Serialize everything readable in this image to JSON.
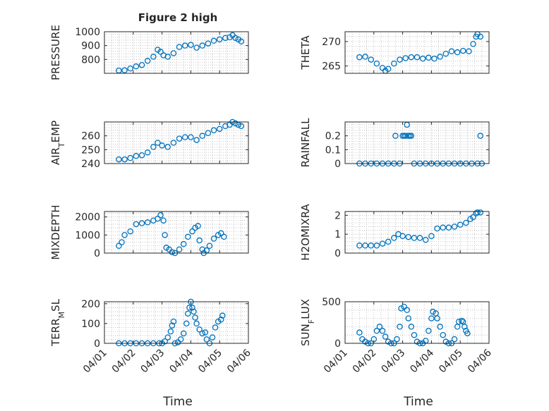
{
  "figure": {
    "title": "Figure 2 high",
    "xlabel": "Time",
    "x_tick_labels": [
      "04/01",
      "04/02",
      "04/03",
      "04/04",
      "04/05",
      "04/06"
    ],
    "marker_color": "#0072bd",
    "marker": "circle-open"
  },
  "chart_data": [
    {
      "type": "scatter",
      "name_key": "pressure",
      "ylabel": "PRESSURE",
      "ylim": [
        700,
        1000
      ],
      "yticks": [
        800,
        900,
        1000
      ],
      "xlim": [
        0,
        5
      ],
      "x_axis": "date (04/01 to 04/06, days from 04/01 00:00)",
      "grid": "on-minor",
      "series_x_range": [
        0.5,
        4.75
      ],
      "points": [
        [
          0.5,
          720
        ],
        [
          0.7,
          722
        ],
        [
          0.9,
          735
        ],
        [
          1.1,
          750
        ],
        [
          1.3,
          760
        ],
        [
          1.5,
          790
        ],
        [
          1.7,
          820
        ],
        [
          1.85,
          870
        ],
        [
          1.95,
          855
        ],
        [
          2.05,
          830
        ],
        [
          2.2,
          820
        ],
        [
          2.4,
          845
        ],
        [
          2.6,
          890
        ],
        [
          2.8,
          900
        ],
        [
          3.0,
          905
        ],
        [
          3.2,
          885
        ],
        [
          3.4,
          900
        ],
        [
          3.6,
          915
        ],
        [
          3.8,
          935
        ],
        [
          4.0,
          945
        ],
        [
          4.2,
          955
        ],
        [
          4.35,
          960
        ],
        [
          4.45,
          975
        ],
        [
          4.55,
          955
        ],
        [
          4.65,
          945
        ],
        [
          4.75,
          930
        ]
      ]
    },
    {
      "type": "scatter",
      "ylabel": "THETA",
      "ylim": [
        263.5,
        272
      ],
      "yticks": [
        265,
        270
      ],
      "points": [
        [
          0.5,
          266.8
        ],
        [
          0.7,
          266.9
        ],
        [
          0.9,
          266.3
        ],
        [
          1.1,
          265.5
        ],
        [
          1.3,
          264.6
        ],
        [
          1.4,
          264
        ],
        [
          1.5,
          264.4
        ],
        [
          1.7,
          265.5
        ],
        [
          1.9,
          266.3
        ],
        [
          2.1,
          266.6
        ],
        [
          2.3,
          266.8
        ],
        [
          2.5,
          266.8
        ],
        [
          2.7,
          266.5
        ],
        [
          2.9,
          266.7
        ],
        [
          3.1,
          266.5
        ],
        [
          3.3,
          266.9
        ],
        [
          3.5,
          267.5
        ],
        [
          3.7,
          268
        ],
        [
          3.9,
          267.8
        ],
        [
          4.1,
          268.1
        ],
        [
          4.3,
          268
        ],
        [
          4.45,
          269.5
        ],
        [
          4.55,
          271
        ],
        [
          4.6,
          271.5
        ],
        [
          4.7,
          271
        ]
      ]
    },
    {
      "type": "scatter",
      "ylabel": "AIR_TEMP",
      "ylim": [
        240,
        270
      ],
      "yticks": [
        240,
        250,
        260
      ],
      "points": [
        [
          0.5,
          243
        ],
        [
          0.7,
          243
        ],
        [
          0.9,
          244
        ],
        [
          1.1,
          245.5
        ],
        [
          1.3,
          246
        ],
        [
          1.5,
          248
        ],
        [
          1.7,
          252
        ],
        [
          1.85,
          255
        ],
        [
          2.0,
          253
        ],
        [
          2.2,
          252
        ],
        [
          2.4,
          255
        ],
        [
          2.6,
          258
        ],
        [
          2.8,
          259
        ],
        [
          3.0,
          259
        ],
        [
          3.2,
          257
        ],
        [
          3.4,
          260
        ],
        [
          3.6,
          262
        ],
        [
          3.8,
          264
        ],
        [
          4.0,
          265
        ],
        [
          4.2,
          267
        ],
        [
          4.35,
          268
        ],
        [
          4.45,
          270
        ],
        [
          4.55,
          269
        ],
        [
          4.65,
          268
        ],
        [
          4.75,
          267
        ]
      ]
    },
    {
      "type": "scatter",
      "ylabel": "RAINFALL",
      "ylim": [
        0,
        0.3
      ],
      "yticks": [
        0,
        0.1,
        0.2
      ],
      "points": [
        [
          0.5,
          0
        ],
        [
          0.7,
          0
        ],
        [
          0.9,
          0
        ],
        [
          1.1,
          0
        ],
        [
          1.3,
          0
        ],
        [
          1.5,
          0
        ],
        [
          1.7,
          0
        ],
        [
          1.75,
          0.2
        ],
        [
          1.9,
          0
        ],
        [
          2.0,
          0.2
        ],
        [
          2.05,
          0.2
        ],
        [
          2.1,
          0.2
        ],
        [
          2.15,
          0.28
        ],
        [
          2.2,
          0.2
        ],
        [
          2.25,
          0.2
        ],
        [
          2.3,
          0.2
        ],
        [
          2.4,
          0
        ],
        [
          2.6,
          0
        ],
        [
          2.8,
          0
        ],
        [
          3.0,
          0
        ],
        [
          3.2,
          0
        ],
        [
          3.4,
          0
        ],
        [
          3.6,
          0
        ],
        [
          3.8,
          0
        ],
        [
          4.0,
          0
        ],
        [
          4.2,
          0
        ],
        [
          4.4,
          0
        ],
        [
          4.6,
          0
        ],
        [
          4.7,
          0.2
        ],
        [
          4.75,
          0
        ]
      ]
    },
    {
      "type": "scatter",
      "ylabel": "MIXDEPTH",
      "ylim": [
        0,
        2300
      ],
      "yticks": [
        0,
        1000,
        2000
      ],
      "points": [
        [
          0.5,
          400
        ],
        [
          0.6,
          600
        ],
        [
          0.7,
          1000
        ],
        [
          0.9,
          1200
        ],
        [
          1.1,
          1600
        ],
        [
          1.3,
          1650
        ],
        [
          1.5,
          1700
        ],
        [
          1.7,
          1800
        ],
        [
          1.85,
          1900
        ],
        [
          1.95,
          2100
        ],
        [
          2.05,
          1800
        ],
        [
          2.1,
          1000
        ],
        [
          2.15,
          300
        ],
        [
          2.25,
          200
        ],
        [
          2.35,
          50
        ],
        [
          2.45,
          0
        ],
        [
          2.6,
          200
        ],
        [
          2.75,
          500
        ],
        [
          2.9,
          900
        ],
        [
          3.05,
          1200
        ],
        [
          3.15,
          1400
        ],
        [
          3.25,
          1500
        ],
        [
          3.3,
          700
        ],
        [
          3.4,
          200
        ],
        [
          3.45,
          0
        ],
        [
          3.55,
          150
        ],
        [
          3.65,
          400
        ],
        [
          3.8,
          800
        ],
        [
          3.95,
          1000
        ],
        [
          4.05,
          1100
        ],
        [
          4.15,
          900
        ]
      ]
    },
    {
      "type": "scatter",
      "ylabel": "H2OMIXRA",
      "ylim": [
        0,
        2.2
      ],
      "yticks": [
        0,
        1,
        2
      ],
      "points": [
        [
          0.5,
          0.4
        ],
        [
          0.7,
          0.4
        ],
        [
          0.9,
          0.4
        ],
        [
          1.1,
          0.4
        ],
        [
          1.3,
          0.5
        ],
        [
          1.5,
          0.6
        ],
        [
          1.7,
          0.8
        ],
        [
          1.85,
          1.0
        ],
        [
          2.0,
          0.9
        ],
        [
          2.2,
          0.85
        ],
        [
          2.4,
          0.8
        ],
        [
          2.6,
          0.8
        ],
        [
          2.8,
          0.7
        ],
        [
          3.0,
          0.9
        ],
        [
          3.2,
          1.3
        ],
        [
          3.4,
          1.35
        ],
        [
          3.6,
          1.35
        ],
        [
          3.8,
          1.4
        ],
        [
          4.0,
          1.5
        ],
        [
          4.2,
          1.6
        ],
        [
          4.35,
          1.8
        ],
        [
          4.45,
          1.9
        ],
        [
          4.55,
          2.1
        ],
        [
          4.6,
          2.15
        ],
        [
          4.7,
          2.15
        ]
      ]
    },
    {
      "type": "scatter",
      "ylabel": "TERR_MSL",
      "ylim": [
        0,
        210
      ],
      "yticks": [
        0,
        100,
        200
      ],
      "points": [
        [
          0.5,
          0
        ],
        [
          0.7,
          0
        ],
        [
          0.9,
          0
        ],
        [
          1.1,
          0
        ],
        [
          1.3,
          0
        ],
        [
          1.5,
          0
        ],
        [
          1.7,
          0
        ],
        [
          1.9,
          0
        ],
        [
          2.0,
          0
        ],
        [
          2.1,
          10
        ],
        [
          2.2,
          30
        ],
        [
          2.3,
          60
        ],
        [
          2.35,
          90
        ],
        [
          2.4,
          110
        ],
        [
          2.45,
          0
        ],
        [
          2.55,
          5
        ],
        [
          2.65,
          20
        ],
        [
          2.75,
          50
        ],
        [
          2.85,
          100
        ],
        [
          2.9,
          150
        ],
        [
          2.95,
          180
        ],
        [
          3.0,
          210
        ],
        [
          3.05,
          180
        ],
        [
          3.1,
          160
        ],
        [
          3.15,
          130
        ],
        [
          3.2,
          100
        ],
        [
          3.3,
          70
        ],
        [
          3.4,
          50
        ],
        [
          3.5,
          55
        ],
        [
          3.55,
          20
        ],
        [
          3.65,
          0
        ],
        [
          3.75,
          30
        ],
        [
          3.85,
          80
        ],
        [
          3.95,
          110
        ],
        [
          4.05,
          120
        ],
        [
          4.1,
          140
        ]
      ]
    },
    {
      "type": "scatter",
      "ylabel": "SUN_FLUX",
      "ylim": [
        0,
        500
      ],
      "yticks": [
        0,
        500
      ],
      "points": [
        [
          0.5,
          130
        ],
        [
          0.6,
          50
        ],
        [
          0.7,
          20
        ],
        [
          0.8,
          0
        ],
        [
          0.9,
          0
        ],
        [
          1.0,
          50
        ],
        [
          1.1,
          150
        ],
        [
          1.2,
          200
        ],
        [
          1.3,
          150
        ],
        [
          1.4,
          80
        ],
        [
          1.5,
          20
        ],
        [
          1.6,
          0
        ],
        [
          1.7,
          0
        ],
        [
          1.8,
          50
        ],
        [
          1.9,
          200
        ],
        [
          1.95,
          420
        ],
        [
          2.05,
          440
        ],
        [
          2.15,
          400
        ],
        [
          2.2,
          300
        ],
        [
          2.3,
          200
        ],
        [
          2.4,
          100
        ],
        [
          2.5,
          20
        ],
        [
          2.6,
          0
        ],
        [
          2.7,
          0
        ],
        [
          2.8,
          30
        ],
        [
          2.9,
          150
        ],
        [
          3.0,
          300
        ],
        [
          3.05,
          380
        ],
        [
          3.15,
          360
        ],
        [
          3.2,
          300
        ],
        [
          3.3,
          200
        ],
        [
          3.4,
          100
        ],
        [
          3.5,
          20
        ],
        [
          3.6,
          0
        ],
        [
          3.7,
          0
        ],
        [
          3.8,
          50
        ],
        [
          3.9,
          200
        ],
        [
          3.95,
          260
        ],
        [
          4.05,
          270
        ],
        [
          4.1,
          260
        ],
        [
          4.15,
          200
        ],
        [
          4.2,
          150
        ],
        [
          4.25,
          120
        ]
      ]
    }
  ]
}
